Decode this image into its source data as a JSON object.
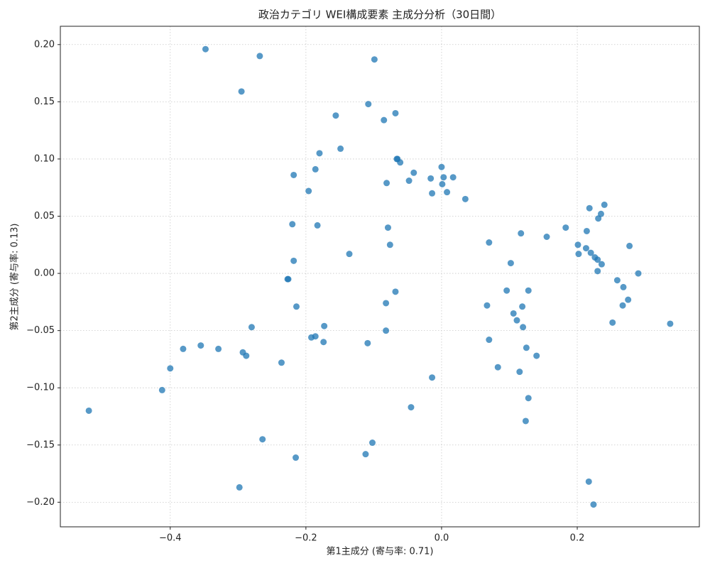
{
  "chart_data": {
    "type": "scatter",
    "title": "政治カテゴリ WEI構成要素 主成分分析（30日間）",
    "x_label": "第1主成分 (寄与率: 0.71)",
    "y_label": "第2主成分 (寄与率: 0.13)",
    "color": "#1f77b4",
    "grid": true,
    "xlim": [
      -0.562,
      0.38
    ],
    "ylim": [
      -0.2215,
      0.216
    ],
    "xticks": [
      {
        "value": -0.4,
        "label": "−0.4"
      },
      {
        "value": -0.2,
        "label": "−0.2"
      },
      {
        "value": 0.0,
        "label": "0.0"
      },
      {
        "value": 0.2,
        "label": "0.2"
      }
    ],
    "yticks": [
      {
        "value": -0.2,
        "label": "−0.20"
      },
      {
        "value": -0.15,
        "label": "−0.15"
      },
      {
        "value": -0.1,
        "label": "−0.10"
      },
      {
        "value": -0.05,
        "label": "−0.05"
      },
      {
        "value": 0.0,
        "label": "0.00"
      },
      {
        "value": 0.05,
        "label": "0.05"
      },
      {
        "value": 0.1,
        "label": "0.10"
      },
      {
        "value": 0.15,
        "label": "0.15"
      },
      {
        "value": 0.2,
        "label": "0.20"
      }
    ],
    "x": [
      -0.52,
      -0.412,
      -0.4,
      -0.381,
      -0.355,
      -0.329,
      -0.293,
      -0.288,
      -0.348,
      -0.268,
      -0.295,
      -0.298,
      -0.264,
      -0.28,
      -0.236,
      -0.227,
      -0.226,
      -0.218,
      -0.22,
      -0.218,
      -0.214,
      -0.215,
      -0.196,
      -0.186,
      -0.18,
      -0.183,
      -0.192,
      -0.186,
      -0.173,
      -0.174,
      -0.149,
      -0.156,
      -0.136,
      -0.109,
      -0.108,
      -0.112,
      -0.102,
      -0.099,
      -0.085,
      -0.068,
      -0.081,
      -0.079,
      -0.076,
      -0.082,
      -0.082,
      -0.068,
      -0.066,
      -0.065,
      -0.061,
      -0.041,
      -0.048,
      -0.045,
      -0.016,
      -0.014,
      -0.014,
      0.0,
      0.003,
      0.001,
      0.008,
      0.017,
      0.035,
      0.067,
      0.07,
      0.07,
      0.083,
      0.096,
      0.102,
      0.106,
      0.111,
      0.115,
      0.117,
      0.119,
      0.12,
      0.125,
      0.128,
      0.124,
      0.128,
      0.14,
      0.155,
      0.183,
      0.201,
      0.202,
      0.213,
      0.214,
      0.218,
      0.22,
      0.226,
      0.23,
      0.23,
      0.231,
      0.235,
      0.236,
      0.24,
      0.217,
      0.224,
      0.252,
      0.259,
      0.267,
      0.268,
      0.275,
      0.277,
      0.29,
      0.337
    ],
    "values": [
      -0.12,
      -0.102,
      -0.083,
      -0.066,
      -0.063,
      -0.066,
      -0.069,
      -0.072,
      0.196,
      0.19,
      0.159,
      -0.187,
      -0.145,
      -0.047,
      -0.078,
      -0.005,
      -0.005,
      0.086,
      0.043,
      0.011,
      -0.029,
      -0.161,
      0.072,
      0.091,
      0.105,
      0.042,
      -0.056,
      -0.055,
      -0.046,
      -0.06,
      0.109,
      0.138,
      0.017,
      -0.061,
      0.148,
      -0.158,
      -0.148,
      0.187,
      0.134,
      0.14,
      0.079,
      0.04,
      0.025,
      -0.026,
      -0.05,
      -0.016,
      0.1,
      0.1,
      0.097,
      0.088,
      0.081,
      -0.117,
      0.083,
      0.07,
      -0.091,
      0.093,
      0.084,
      0.078,
      0.071,
      0.084,
      0.065,
      -0.028,
      0.027,
      -0.058,
      -0.082,
      -0.015,
      0.009,
      -0.035,
      -0.041,
      -0.086,
      0.035,
      -0.029,
      -0.047,
      -0.065,
      -0.015,
      -0.129,
      -0.109,
      -0.072,
      0.032,
      0.04,
      0.025,
      0.017,
      0.022,
      0.037,
      0.057,
      0.018,
      0.014,
      0.012,
      0.002,
      0.048,
      0.052,
      0.008,
      0.06,
      -0.182,
      -0.202,
      -0.043,
      -0.006,
      -0.028,
      -0.012,
      -0.023,
      0.024,
      0.0,
      -0.044
    ]
  }
}
